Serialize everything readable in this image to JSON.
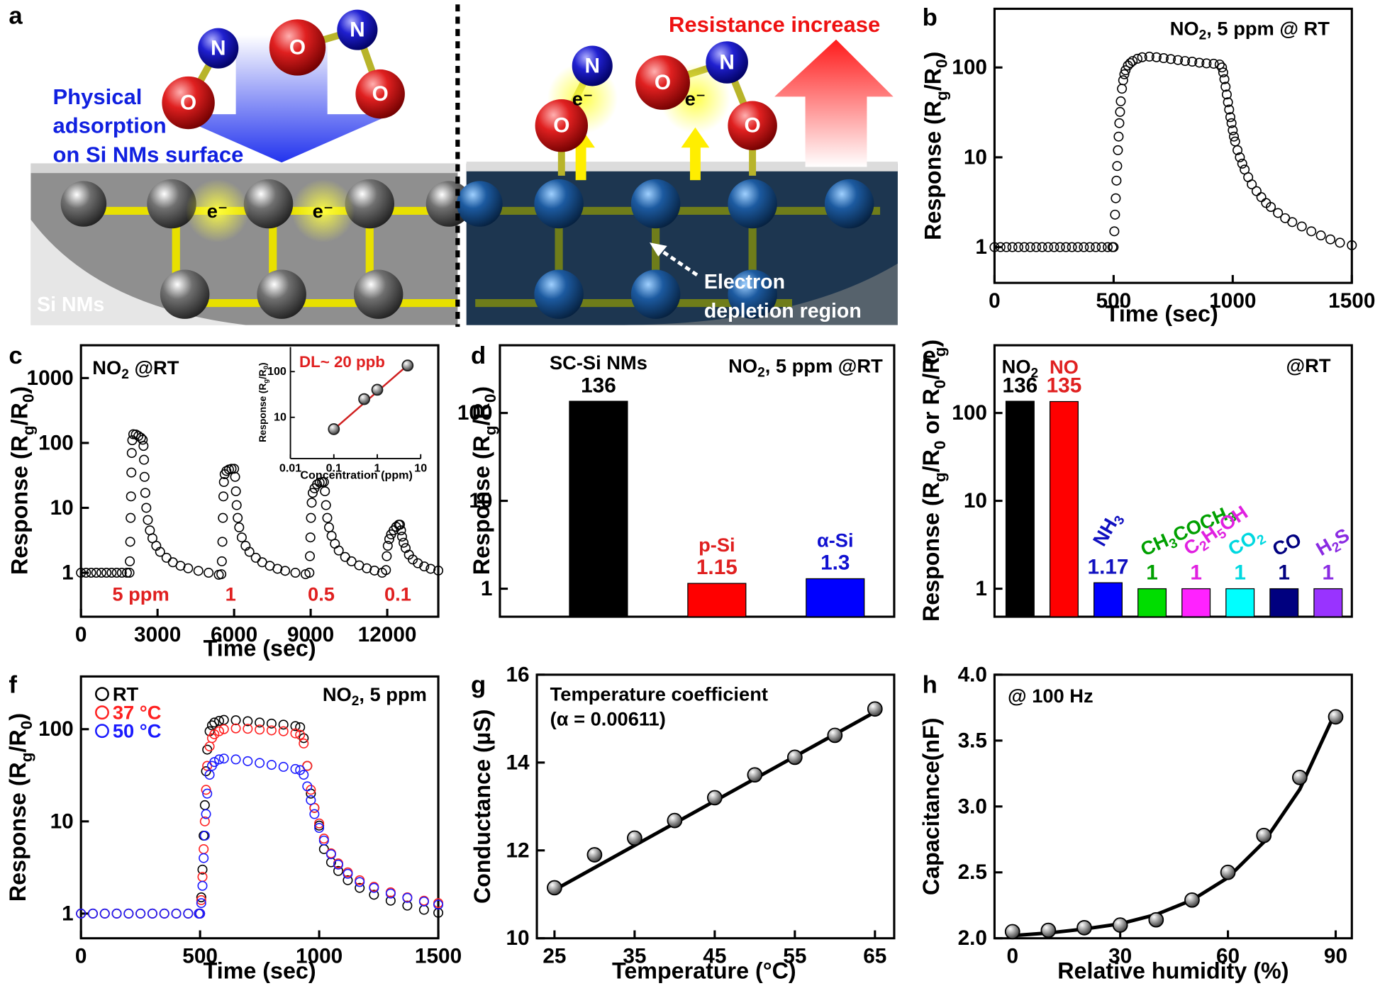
{
  "diagram": {
    "panel": "a",
    "adsorption": [
      "Physical",
      "adsorption",
      "on Si NMs surface"
    ],
    "substrate": "Si NMs",
    "resistance": "Resistance increase",
    "depletion": [
      "Electron",
      "depletion region"
    ],
    "atoms": [
      "N",
      "O",
      "O",
      "N",
      "O",
      "N",
      "O",
      "O",
      "N",
      "O"
    ],
    "electrons": [
      "e⁻",
      "e⁻",
      "e⁻",
      "e⁻"
    ]
  },
  "chart_data": [
    {
      "panel": "b",
      "type": "scatter",
      "annotations": [
        [
          "NO",
          "2",
          ", 5 ppm @ RT"
        ]
      ],
      "xlabel": "Time (sec)",
      "ylabel": [
        "Response (R",
        "g",
        "/R",
        "0",
        ")"
      ],
      "xlim": [
        0,
        1500
      ],
      "xticks": [
        0,
        500,
        1000,
        1500
      ],
      "ylim": [
        0.4,
        450
      ],
      "yticks": [
        1,
        10,
        100
      ],
      "ylog": true,
      "x": [
        0,
        25,
        50,
        75,
        100,
        125,
        150,
        175,
        200,
        225,
        250,
        275,
        300,
        325,
        350,
        375,
        400,
        425,
        450,
        475,
        495,
        500,
        503,
        506,
        509,
        512,
        515,
        518,
        521,
        524,
        527,
        530,
        535,
        540,
        545,
        550,
        560,
        570,
        580,
        600,
        620,
        650,
        680,
        710,
        740,
        770,
        800,
        830,
        860,
        890,
        920,
        945,
        955,
        960,
        965,
        970,
        975,
        980,
        985,
        990,
        995,
        1000,
        1005,
        1010,
        1020,
        1030,
        1040,
        1050,
        1065,
        1080,
        1100,
        1120,
        1140,
        1160,
        1190,
        1220,
        1250,
        1290,
        1330,
        1370,
        1410,
        1450,
        1500
      ],
      "series": [
        {
          "color": "#000000",
          "values": [
            1,
            1,
            1,
            1,
            1,
            1,
            1,
            1,
            1,
            1,
            1,
            1,
            1,
            1,
            1,
            1,
            1,
            1,
            1,
            1,
            1,
            1,
            1.5,
            2.3,
            3.5,
            5.5,
            8,
            12,
            17,
            24,
            32,
            42,
            58,
            72,
            84,
            93,
            105,
            112,
            118,
            125,
            130,
            132,
            130,
            127,
            124,
            121,
            118,
            116,
            113,
            111,
            110,
            108,
            100,
            88,
            74,
            61,
            50,
            41,
            34,
            28,
            24,
            20,
            17,
            15,
            12,
            10,
            8.5,
            7.3,
            6,
            5,
            4.2,
            3.6,
            3.1,
            2.8,
            2.4,
            2.1,
            1.9,
            1.7,
            1.5,
            1.35,
            1.22,
            1.12,
            1.05
          ]
        }
      ]
    },
    {
      "panel": "c",
      "type": "scatter",
      "annotations": [
        [
          "NO",
          "2",
          " @RT"
        ]
      ],
      "xlabel": "Time (sec)",
      "ylabel": [
        "Response (R",
        "g",
        "/R",
        "0",
        ")"
      ],
      "xlim": [
        0,
        14000
      ],
      "xticks": [
        0,
        3000,
        6000,
        9000,
        12000
      ],
      "ylim": [
        0.21,
        3200
      ],
      "yticks": [
        1,
        10,
        100,
        1000
      ],
      "ylog": true,
      "pulse_labels": [
        "5 ppm",
        "1",
        "0.5",
        "0.1"
      ],
      "pulse_color": "#e02020",
      "x": [
        0,
        200,
        400,
        600,
        800,
        1000,
        1200,
        1400,
        1600,
        1800,
        1900,
        1915,
        1930,
        1945,
        1960,
        1975,
        1990,
        2010,
        2050,
        2150,
        2250,
        2350,
        2420,
        2450,
        2470,
        2490,
        2520,
        2560,
        2620,
        2700,
        2800,
        2950,
        3100,
        3350,
        3600,
        3900,
        4200,
        4600,
        5000,
        5400,
        5500,
        5520,
        5540,
        5560,
        5580,
        5600,
        5630,
        5700,
        5800,
        5900,
        6000,
        6040,
        6070,
        6100,
        6140,
        6200,
        6300,
        6450,
        6600,
        6850,
        7100,
        7400,
        7700,
        8000,
        8400,
        8800,
        8950,
        8970,
        8990,
        9010,
        9040,
        9080,
        9150,
        9250,
        9350,
        9450,
        9520,
        9560,
        9600,
        9650,
        9720,
        9820,
        9950,
        10100,
        10350,
        10600,
        10900,
        11200,
        11500,
        11800,
        11950,
        11980,
        12020,
        12080,
        12150,
        12250,
        12350,
        12450,
        12500,
        12540,
        12580,
        12640,
        12720,
        12850,
        13000,
        13200,
        13450,
        13700,
        14000
      ],
      "series": [
        {
          "color": "#000000",
          "values": [
            1,
            1,
            1,
            1,
            1,
            1,
            1,
            1,
            1,
            1,
            1,
            1.5,
            3,
            7,
            15,
            35,
            70,
            110,
            136,
            135,
            128,
            120,
            112,
            90,
            55,
            30,
            17,
            10,
            6.5,
            4.5,
            3.4,
            2.6,
            2.1,
            1.7,
            1.45,
            1.28,
            1.17,
            1.07,
            1,
            0.93,
            0.95,
            1.5,
            3,
            7,
            15,
            25,
            33,
            37,
            39,
            40,
            40,
            30,
            18,
            11,
            7,
            5,
            3.5,
            2.6,
            2.1,
            1.7,
            1.45,
            1.28,
            1.15,
            1.07,
            1,
            0.95,
            1,
            1.8,
            3.5,
            7,
            12,
            17,
            20,
            23,
            24.5,
            25,
            25,
            18,
            11,
            7,
            5,
            3.7,
            2.8,
            2.2,
            1.75,
            1.5,
            1.3,
            1.17,
            1.08,
            1,
            1.1,
            1.8,
            2.6,
            3.3,
            3.9,
            4.5,
            5.1,
            5.5,
            5.5,
            4.5,
            3.6,
            2.9,
            2.4,
            1.9,
            1.6,
            1.4,
            1.25,
            1.15,
            1.08
          ]
        }
      ],
      "inset": {
        "type": "scatter",
        "annotations": [
          "DL~ 20 ppb"
        ],
        "annotation_color": "#e02020",
        "xlabel": "Concentration (ppm)",
        "ylabel": [
          "Response (R",
          "g",
          "/R",
          "0",
          ")"
        ],
        "xlim": [
          0.01,
          10
        ],
        "xticks": [
          0.01,
          0.1,
          1,
          10
        ],
        "xlog": true,
        "ylim": [
          1.25,
          345
        ],
        "yticks": [
          10,
          100
        ],
        "ylog": true,
        "x": [
          0.1,
          0.5,
          1,
          5
        ],
        "series": [
          {
            "color": "#222222",
            "values": [
              5.5,
              25,
              40,
              136
            ]
          }
        ],
        "fit": {
          "color": "#d02020",
          "x": [
            0.09,
            6
          ],
          "values": [
            5,
            160
          ]
        }
      }
    },
    {
      "panel": "d",
      "type": "bar",
      "annotations": [
        [
          "NO",
          "2",
          ", 5 ppm @RT"
        ]
      ],
      "ylabel": [
        "Response (R",
        "g",
        "/R",
        "0",
        ")"
      ],
      "ylim": [
        0.48,
        590
      ],
      "yticks": [
        1,
        10,
        100
      ],
      "ylog": true,
      "categories": [
        "SC-Si NMs",
        "p-Si",
        "α-Si"
      ],
      "values": [
        136,
        1.15,
        1.3
      ],
      "colors": [
        "#000000",
        "#ff0000",
        "#0000ff"
      ],
      "label_colors": [
        "#000000",
        "#e02020",
        "#1010d0"
      ]
    },
    {
      "panel": "e",
      "type": "bar",
      "annotations": [
        "@RT"
      ],
      "ylabel": [
        "Response (R",
        "g",
        "/R",
        "0",
        " or R",
        "0",
        "/R",
        "g",
        ")"
      ],
      "ylim": [
        0.48,
        590
      ],
      "yticks": [
        1,
        10,
        100
      ],
      "ylog": true,
      "categories": [
        [
          "NO",
          "2"
        ],
        [
          "NO"
        ],
        [
          "NH",
          "3"
        ],
        [
          "CH",
          "3",
          "COCH",
          "3"
        ],
        [
          "C",
          "2",
          "H",
          "5",
          "OH"
        ],
        [
          "CO",
          "2"
        ],
        [
          "CO"
        ],
        [
          "H",
          "2",
          "S"
        ]
      ],
      "values": [
        136,
        135,
        1.17,
        1,
        1,
        1,
        1,
        1
      ],
      "colors": [
        "#000000",
        "#ff0000",
        "#0000ff",
        "#00dd00",
        "#ff22ff",
        "#00ffff",
        "#00007f",
        "#9933ff"
      ],
      "label_colors": [
        "#000000",
        "#e02020",
        "#1010c0",
        "#00a000",
        "#e020e0",
        "#00d8e0",
        "#000080",
        "#8a2be2"
      ]
    },
    {
      "panel": "f",
      "type": "scatter",
      "annotations": [
        [
          "NO",
          "2",
          ", 5 ppm"
        ]
      ],
      "xlabel": "Time (sec)",
      "ylabel": [
        "Response (R",
        "g",
        "/R",
        "0",
        ")"
      ],
      "xlim": [
        0,
        1500
      ],
      "xticks": [
        0,
        500,
        1000,
        1500
      ],
      "ylim": [
        0.54,
        373
      ],
      "yticks": [
        1,
        10,
        100
      ],
      "ylog": true,
      "legend": "top-left",
      "x": [
        0,
        50,
        100,
        150,
        200,
        250,
        300,
        350,
        400,
        450,
        495,
        500,
        505,
        510,
        515,
        520,
        525,
        530,
        540,
        550,
        560,
        580,
        600,
        650,
        700,
        750,
        800,
        850,
        900,
        920,
        935,
        950,
        965,
        980,
        1000,
        1020,
        1050,
        1080,
        1120,
        1170,
        1230,
        1300,
        1370,
        1440,
        1500
      ],
      "series": [
        {
          "name": "RT",
          "color": "#000000",
          "values": [
            1,
            1,
            1,
            1,
            1,
            1,
            1,
            1,
            1,
            1,
            1,
            1,
            1.5,
            3,
            7,
            15,
            35,
            60,
            95,
            110,
            118,
            123,
            126,
            125,
            122,
            118,
            115,
            112,
            108,
            105,
            80,
            40,
            20,
            14,
            9,
            5,
            3.6,
            2.9,
            2.3,
            1.9,
            1.6,
            1.38,
            1.22,
            1.1,
            1.02
          ]
        },
        {
          "name": "37 °C",
          "color": "#ff2020",
          "values": [
            1,
            1,
            1,
            1,
            1,
            1,
            1,
            1,
            1,
            1,
            1,
            1,
            1.4,
            2.5,
            5,
            10,
            22,
            40,
            65,
            80,
            88,
            95,
            100,
            102,
            101,
            99,
            97,
            95,
            90,
            87,
            70,
            40,
            22,
            14,
            9.5,
            6.5,
            4.5,
            3.5,
            2.8,
            2.3,
            1.95,
            1.7,
            1.5,
            1.38,
            1.3
          ]
        },
        {
          "name": "50 °C",
          "color": "#1a1aff",
          "values": [
            1,
            1,
            1,
            1,
            1,
            1,
            1,
            1,
            1,
            1,
            1,
            1,
            1.3,
            2,
            4,
            7,
            12,
            20,
            32,
            40,
            44,
            47,
            48,
            47,
            45,
            43,
            41,
            39,
            37,
            36,
            32,
            24,
            17,
            12,
            8.5,
            6.2,
            4.4,
            3.4,
            2.7,
            2.2,
            1.9,
            1.65,
            1.48,
            1.35,
            1.25
          ]
        }
      ]
    },
    {
      "panel": "g",
      "type": "scatter",
      "annotations": [
        "Temperature coefficient",
        "(α = 0.00611)"
      ],
      "xlabel": "Temperature (°C)",
      "ylabel": "Conductance (µS)",
      "xlim": [
        22.8,
        67.4
      ],
      "xticks": [
        25,
        35,
        45,
        55,
        65
      ],
      "ylim": [
        10,
        16
      ],
      "yticks": [
        10,
        12,
        14,
        16
      ],
      "x": [
        25,
        30,
        35,
        40,
        45,
        50,
        55,
        60,
        65
      ],
      "series": [
        {
          "color": "#000000",
          "values": [
            11.15,
            11.9,
            12.28,
            12.68,
            13.2,
            13.72,
            14.12,
            14.62,
            15.22
          ]
        }
      ],
      "fit": {
        "color": "#000000",
        "x": [
          25,
          65
        ],
        "values": [
          11.1,
          15.15
        ]
      }
    },
    {
      "panel": "h",
      "type": "scatter",
      "annotations": [
        "@ 100 Hz"
      ],
      "xlabel": "Relative humidity (%)",
      "ylabel": "Capacitance(nF)",
      "xlim": [
        -5,
        94.5
      ],
      "xticks": [
        0,
        30,
        60,
        90
      ],
      "ylim": [
        2,
        4
      ],
      "yticks": [
        {
          "value": 2,
          "label": "2.0"
        },
        2.5,
        {
          "value": 3,
          "label": "3.0"
        },
        3.5,
        {
          "value": 4,
          "label": "4.0"
        }
      ],
      "x": [
        0,
        10,
        20,
        30,
        40,
        50,
        60,
        70,
        80,
        90
      ],
      "series": [
        {
          "color": "#000000",
          "values": [
            2.05,
            2.06,
            2.08,
            2.1,
            2.14,
            2.29,
            2.5,
            2.78,
            3.22,
            3.68
          ]
        }
      ],
      "fit": {
        "color": "#000000",
        "x": [
          0,
          10,
          20,
          30,
          40,
          50,
          60,
          70,
          80,
          90
        ],
        "values": [
          2.02,
          2.04,
          2.07,
          2.11,
          2.18,
          2.29,
          2.46,
          2.73,
          3.13,
          3.72
        ]
      }
    }
  ]
}
